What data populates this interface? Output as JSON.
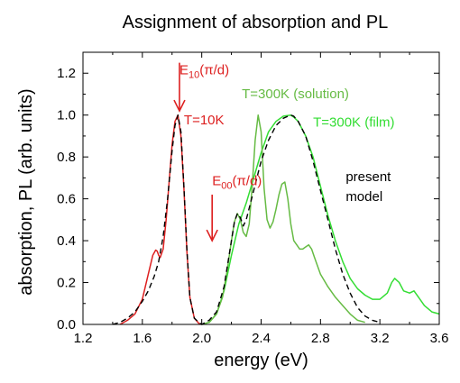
{
  "chart_data": {
    "type": "line",
    "title": "Assignment of absorption and PL",
    "xlabel": "energy (eV)",
    "ylabel": "absorption, PL (arb. units)",
    "xlim": [
      1.2,
      3.6
    ],
    "ylim": [
      0,
      1.3
    ],
    "xticks": [
      1.2,
      1.6,
      2.0,
      2.4,
      2.8,
      3.2,
      3.6
    ],
    "xtick_labels": [
      "1.2",
      "1.6",
      "2.0",
      "2.4",
      "2.8",
      "3.2",
      "3.6"
    ],
    "yticks": [
      0,
      0.2,
      0.4,
      0.6,
      0.8,
      1.0,
      1.2
    ],
    "ytick_labels": [
      "0.0",
      "0.2",
      "0.4",
      "0.6",
      "0.8",
      "1.0",
      "1.2"
    ],
    "grid": false,
    "legend": "none",
    "colors": {
      "red": "#dd2020",
      "solution": "#66bb44",
      "film": "#33dd33",
      "model": "#000000",
      "text": "#000000"
    },
    "series": [
      {
        "name": "T=10K",
        "color": "#dd2020",
        "style": "solid",
        "x": [
          1.45,
          1.5,
          1.55,
          1.6,
          1.64,
          1.67,
          1.69,
          1.7,
          1.71,
          1.72,
          1.74,
          1.76,
          1.78,
          1.8,
          1.82,
          1.84,
          1.86,
          1.88,
          1.9,
          1.92,
          1.95,
          1.98,
          2.0
        ],
        "y": [
          0.0,
          0.02,
          0.05,
          0.12,
          0.24,
          0.33,
          0.355,
          0.35,
          0.33,
          0.32,
          0.36,
          0.5,
          0.68,
          0.86,
          0.97,
          1.0,
          0.9,
          0.65,
          0.35,
          0.13,
          0.03,
          0.005,
          0.0
        ]
      },
      {
        "name": "T=300K (solution)",
        "color": "#66bb44",
        "style": "solid",
        "x": [
          2.0,
          2.05,
          2.1,
          2.14,
          2.17,
          2.2,
          2.22,
          2.24,
          2.26,
          2.28,
          2.3,
          2.32,
          2.34,
          2.36,
          2.38,
          2.4,
          2.42,
          2.44,
          2.46,
          2.48,
          2.5,
          2.52,
          2.54,
          2.56,
          2.58,
          2.6,
          2.62,
          2.64,
          2.66,
          2.68,
          2.7,
          2.72,
          2.74,
          2.76,
          2.8,
          2.85,
          2.9,
          2.95,
          3.0,
          3.05,
          3.1
        ],
        "y": [
          0.0,
          0.01,
          0.05,
          0.13,
          0.25,
          0.4,
          0.49,
          0.53,
          0.5,
          0.44,
          0.42,
          0.48,
          0.66,
          0.88,
          1.0,
          0.92,
          0.65,
          0.5,
          0.46,
          0.49,
          0.55,
          0.62,
          0.67,
          0.68,
          0.6,
          0.48,
          0.4,
          0.38,
          0.36,
          0.36,
          0.37,
          0.38,
          0.36,
          0.32,
          0.24,
          0.18,
          0.13,
          0.09,
          0.05,
          0.02,
          0.01
        ]
      },
      {
        "name": "T=300K (film)",
        "color": "#33dd33",
        "style": "solid",
        "x": [
          2.0,
          2.05,
          2.1,
          2.15,
          2.2,
          2.25,
          2.3,
          2.35,
          2.4,
          2.45,
          2.5,
          2.55,
          2.6,
          2.62,
          2.65,
          2.7,
          2.75,
          2.8,
          2.85,
          2.9,
          2.95,
          3.0,
          3.05,
          3.1,
          3.15,
          3.2,
          3.25,
          3.28,
          3.3,
          3.33,
          3.36,
          3.4,
          3.43,
          3.46,
          3.5,
          3.55,
          3.6
        ],
        "y": [
          0.0,
          0.01,
          0.05,
          0.16,
          0.33,
          0.48,
          0.58,
          0.7,
          0.82,
          0.92,
          0.97,
          0.995,
          1.0,
          0.99,
          0.97,
          0.9,
          0.8,
          0.66,
          0.52,
          0.4,
          0.3,
          0.22,
          0.17,
          0.14,
          0.12,
          0.12,
          0.15,
          0.2,
          0.22,
          0.2,
          0.16,
          0.15,
          0.16,
          0.13,
          0.09,
          0.06,
          0.05
        ]
      },
      {
        "name": "present model",
        "color": "#000000",
        "style": "dashed",
        "x": [
          1.4,
          1.45,
          1.5,
          1.55,
          1.6,
          1.64,
          1.68,
          1.71,
          1.74,
          1.77,
          1.8,
          1.82,
          1.84,
          1.86,
          1.88,
          1.9,
          1.92,
          1.95,
          1.98,
          2.0,
          2.05,
          2.1,
          2.15,
          2.2,
          2.22,
          2.24,
          2.26,
          2.28,
          2.3,
          2.35,
          2.4,
          2.45,
          2.5,
          2.55,
          2.6,
          2.62,
          2.65,
          2.7,
          2.75,
          2.8,
          2.85,
          2.9,
          2.95,
          3.0,
          3.05,
          3.1,
          3.15,
          3.2
        ],
        "y": [
          0.0,
          0.01,
          0.03,
          0.06,
          0.11,
          0.16,
          0.23,
          0.3,
          0.42,
          0.6,
          0.83,
          0.95,
          1.0,
          0.92,
          0.66,
          0.36,
          0.13,
          0.03,
          0.01,
          0.0,
          0.02,
          0.06,
          0.18,
          0.4,
          0.49,
          0.53,
          0.51,
          0.47,
          0.5,
          0.64,
          0.78,
          0.88,
          0.95,
          0.985,
          1.0,
          0.995,
          0.97,
          0.9,
          0.78,
          0.64,
          0.5,
          0.36,
          0.24,
          0.15,
          0.08,
          0.04,
          0.02,
          0.01
        ]
      }
    ],
    "annotations": [
      {
        "id": "e10",
        "main": "E",
        "sub": "10",
        "paren": "(π/d)",
        "color": "#dd2020",
        "x": 1.85,
        "y": 1.195
      },
      {
        "id": "e00",
        "main": "E",
        "sub": "00",
        "paren": "(π/d)",
        "color": "#dd2020",
        "x": 2.07,
        "y": 0.665
      },
      {
        "id": "t10",
        "text": "T=10K",
        "color": "#dd2020",
        "x": 1.88,
        "y": 0.955
      },
      {
        "id": "tsol",
        "text": "T=300K (solution)",
        "color": "#66bb44",
        "x": 2.27,
        "y": 1.08
      },
      {
        "id": "tfilm",
        "text": "T=300K (film)",
        "color": "#33dd33",
        "x": 2.75,
        "y": 0.945
      },
      {
        "id": "model1",
        "text": "present",
        "color": "#000000",
        "x": 2.97,
        "y": 0.685
      },
      {
        "id": "model2",
        "text": "model",
        "color": "#000000",
        "x": 2.97,
        "y": 0.59
      }
    ],
    "arrows": [
      {
        "id": "arrow-e10",
        "color": "#dd2020",
        "x": 1.85,
        "y_from": 1.25,
        "y_to": 1.02
      },
      {
        "id": "arrow-e00",
        "color": "#dd2020",
        "x": 2.07,
        "y_from": 0.62,
        "y_to": 0.4
      }
    ]
  }
}
